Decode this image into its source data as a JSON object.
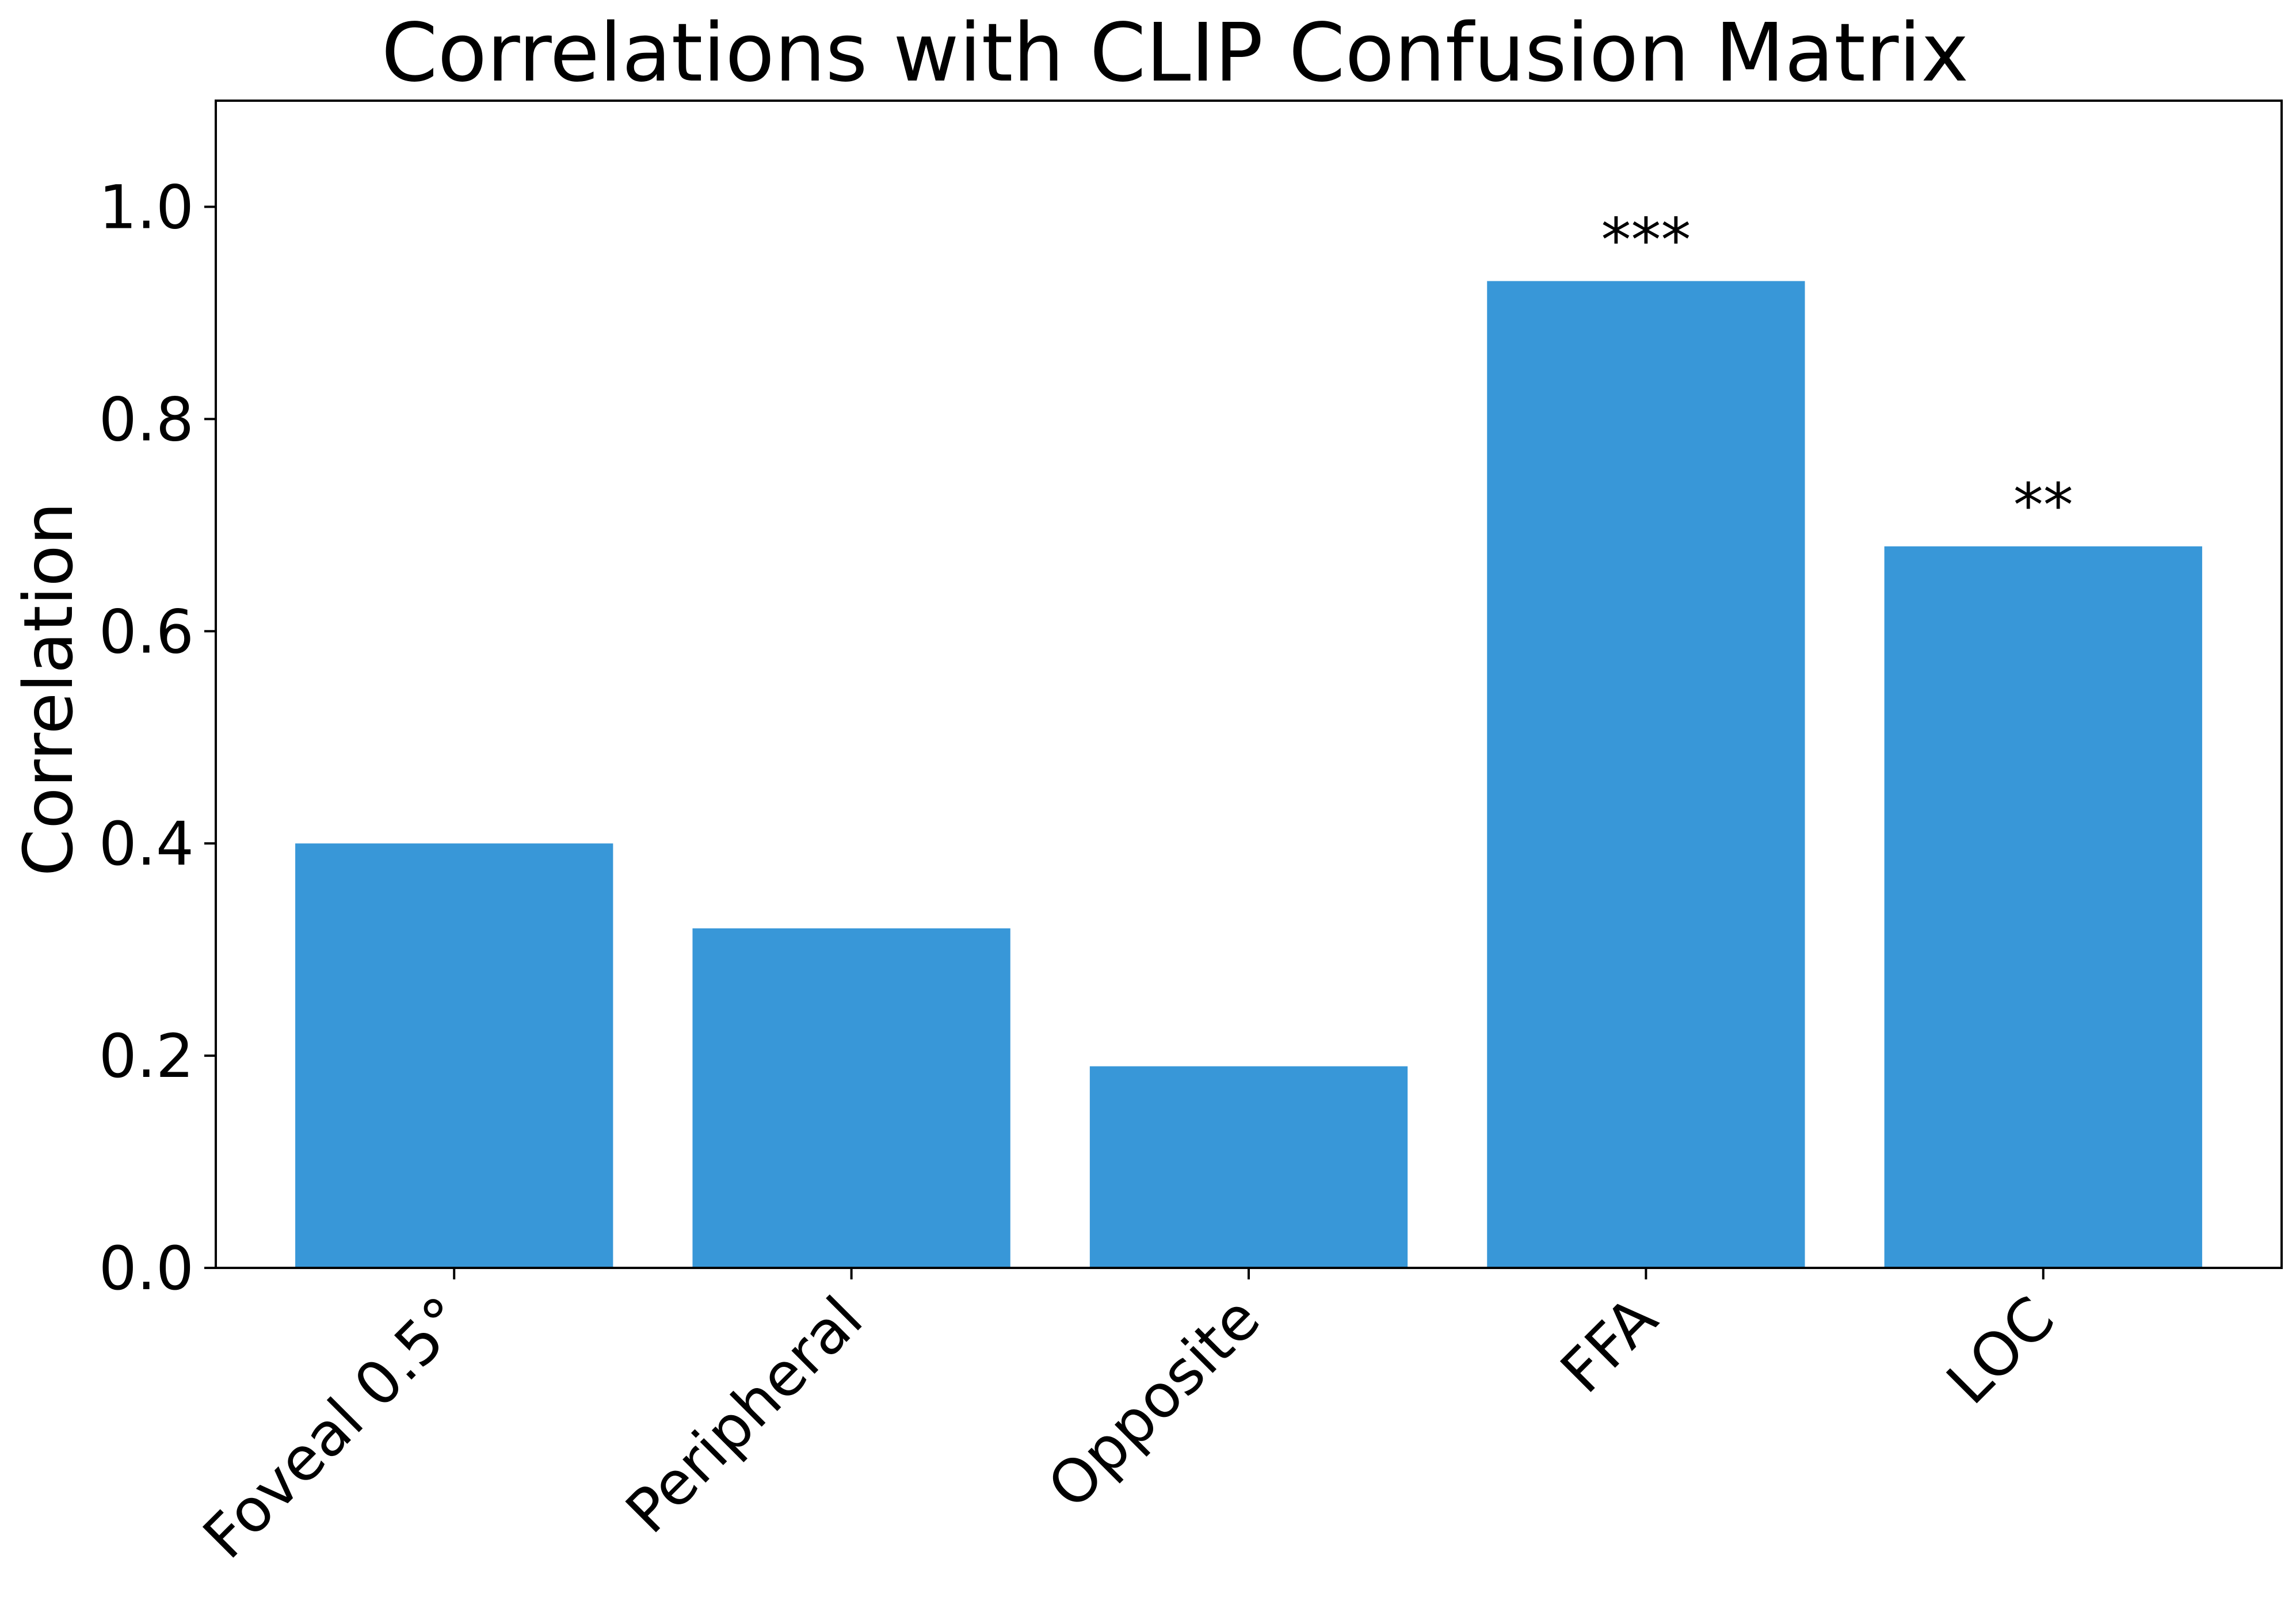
{
  "chart_data": {
    "type": "bar",
    "title": "Correlations with CLIP Confusion Matrix",
    "xlabel": "",
    "ylabel": "Correlation",
    "categories": [
      "Foveal 0.5°",
      "Peripheral",
      "Opposite",
      "FFA",
      "LOC"
    ],
    "values": [
      0.4,
      0.32,
      0.19,
      0.93,
      0.68
    ],
    "annotations": [
      "",
      "",
      "",
      "***",
      "**"
    ],
    "ylim": [
      0,
      1.1
    ],
    "yticks": [
      0.0,
      0.2,
      0.4,
      0.6,
      0.8,
      1.0
    ],
    "ytick_labels": [
      "0.0",
      "0.2",
      "0.4",
      "0.6",
      "0.8",
      "1.0"
    ],
    "grid": false,
    "colors": {
      "bar": "#3897d8",
      "axis": "#000000"
    }
  }
}
